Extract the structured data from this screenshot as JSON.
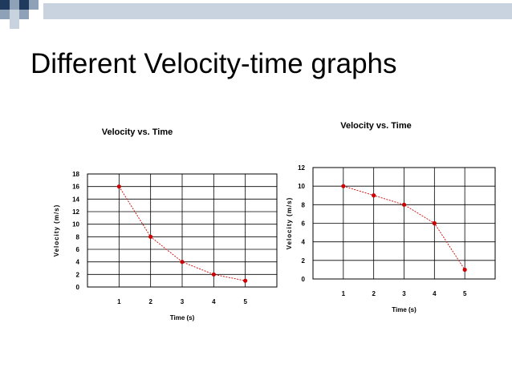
{
  "slide": {
    "title": "Different Velocity-time graphs"
  },
  "theme": {
    "square_dark": "#1f3a5c",
    "square_mid": "#8fa1b7",
    "square_light": "#c9d2df",
    "line_color": "#cc0000",
    "grid_color": "#000000"
  },
  "chart_data": [
    {
      "type": "line",
      "title": "Velocity vs. Time",
      "xlabel": "Time (s)",
      "ylabel": "Velocity (m/s)",
      "x": [
        1,
        2,
        3,
        4,
        5
      ],
      "series": [
        {
          "values": [
            16,
            8,
            4,
            2,
            1
          ]
        }
      ],
      "x_ticks": [
        "1",
        "2",
        "3",
        "4",
        "5"
      ],
      "y_ticks": [
        "0",
        "2",
        "4",
        "6",
        "8",
        "10",
        "12",
        "14",
        "16",
        "18"
      ],
      "xlim": [
        0,
        6
      ],
      "ylim": [
        0,
        18
      ],
      "grid": true,
      "legend": "none"
    },
    {
      "type": "line",
      "title": "Velocity vs. Time",
      "xlabel": "Time (s)",
      "ylabel": "Velocity (m/s)",
      "x": [
        1,
        2,
        3,
        4,
        5
      ],
      "series": [
        {
          "values": [
            10,
            9,
            8,
            6,
            1
          ]
        }
      ],
      "x_ticks": [
        "1",
        "2",
        "3",
        "4",
        "5"
      ],
      "y_ticks": [
        "0",
        "2",
        "4",
        "6",
        "8",
        "10",
        "12"
      ],
      "xlim": [
        0,
        6
      ],
      "ylim": [
        0,
        12
      ],
      "grid": true,
      "legend": "none"
    }
  ]
}
